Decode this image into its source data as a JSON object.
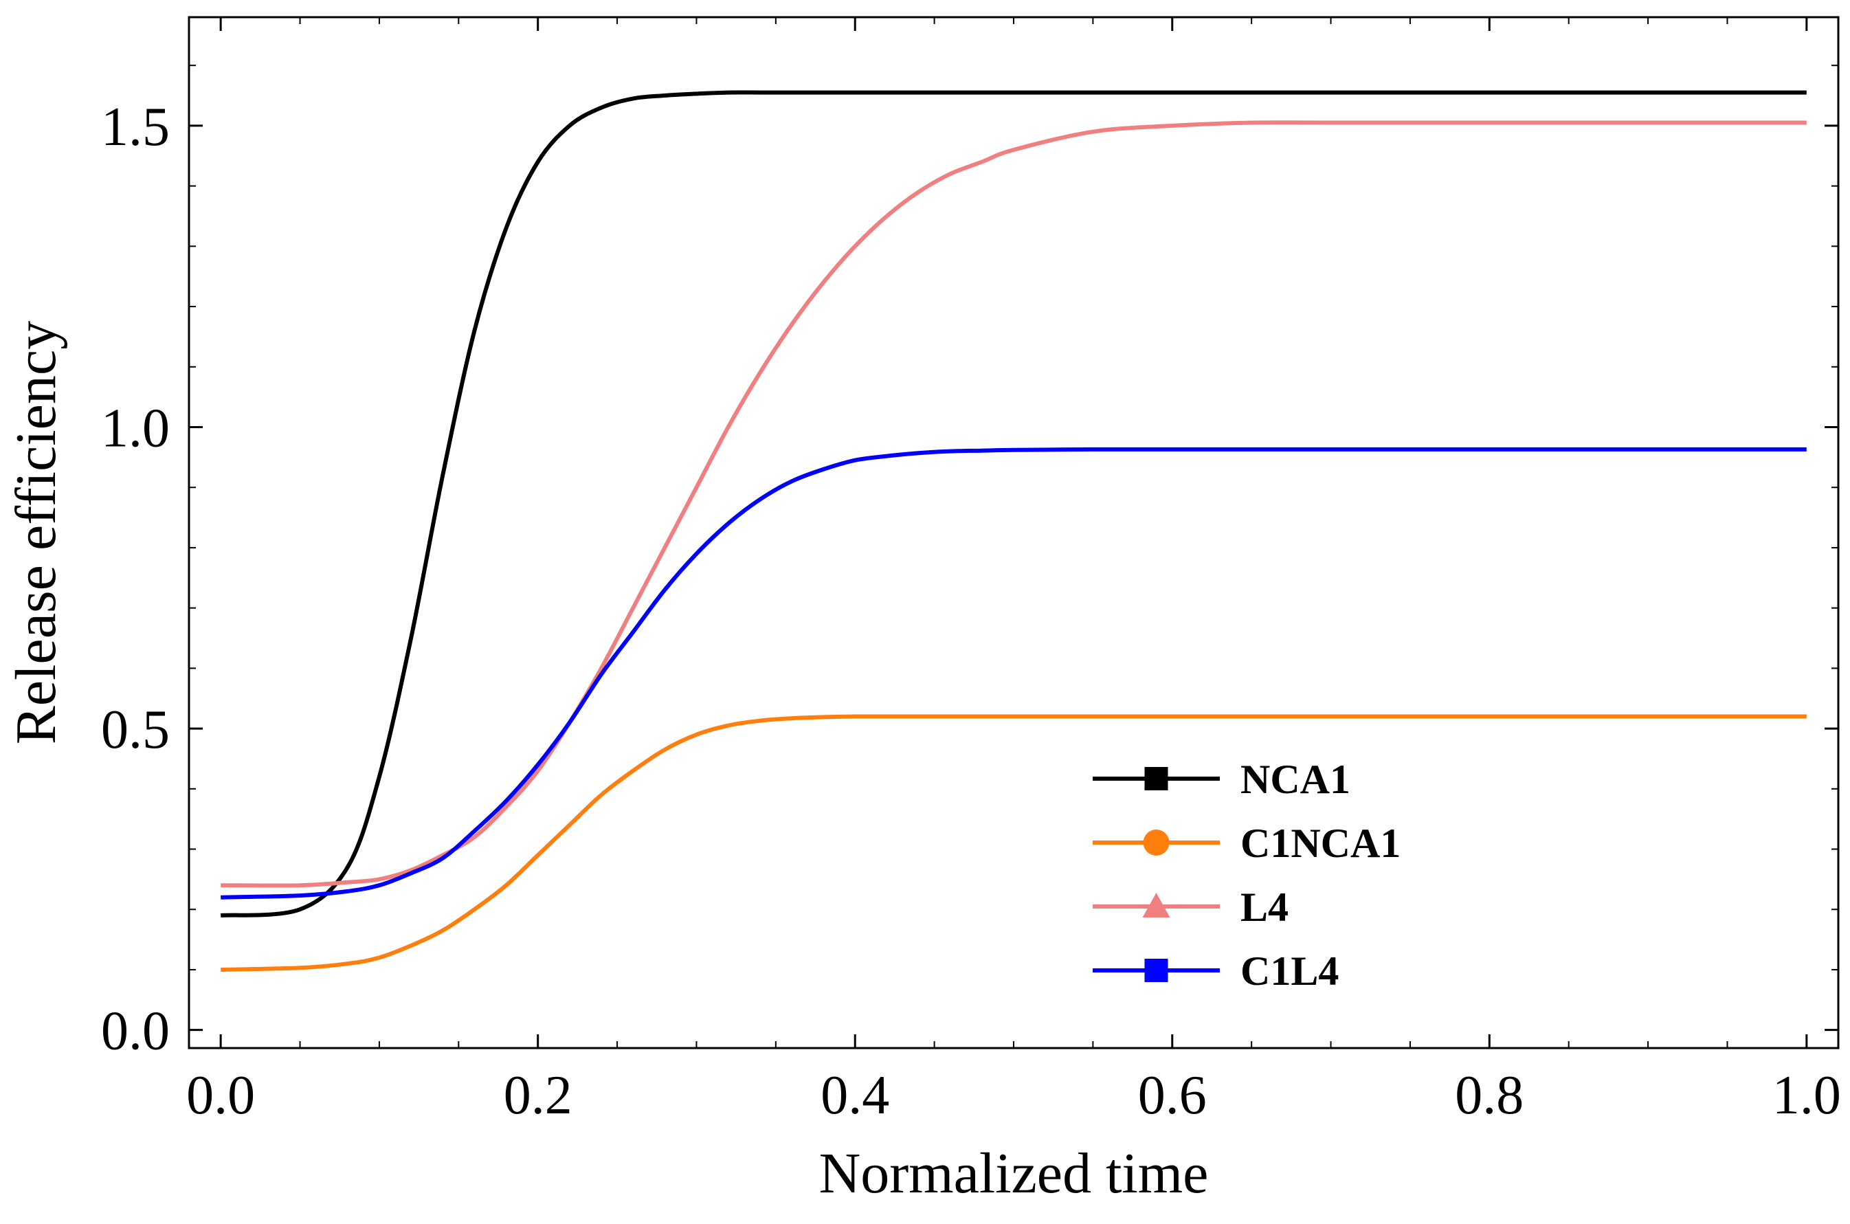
{
  "chart_data": {
    "type": "line",
    "xlabel": "Normalized time",
    "ylabel": "Release efficiency",
    "xlim": [
      -0.02,
      1.02
    ],
    "ylim": [
      -0.03,
      1.68
    ],
    "x_ticks": [
      0.0,
      0.2,
      0.4,
      0.6,
      0.8,
      1.0
    ],
    "x_tick_labels": [
      "0.0",
      "0.2",
      "0.4",
      "0.6",
      "0.8",
      "1.0"
    ],
    "y_ticks": [
      0.0,
      0.5,
      1.0,
      1.5
    ],
    "y_tick_labels": [
      "0.0",
      "0.5",
      "1.0",
      "1.5"
    ],
    "x_minor_step": 0.05,
    "y_minor_step": 0.1,
    "grid": false,
    "legend_position": "bottom-right",
    "x": [
      0.0,
      0.05,
      0.08,
      0.1,
      0.12,
      0.14,
      0.16,
      0.18,
      0.2,
      0.22,
      0.24,
      0.26,
      0.28,
      0.3,
      0.32,
      0.34,
      0.36,
      0.38,
      0.4,
      0.42,
      0.44,
      0.46,
      0.48,
      0.5,
      0.55,
      0.6,
      0.65,
      0.7,
      0.8,
      0.9,
      1.0
    ],
    "series": [
      {
        "name": "NCA1",
        "color": "#000000",
        "marker": "square",
        "values": [
          0.19,
          0.2,
          0.27,
          0.42,
          0.65,
          0.92,
          1.16,
          1.33,
          1.44,
          1.5,
          1.53,
          1.545,
          1.55,
          1.553,
          1.555,
          1.555,
          1.555,
          1.555,
          1.555,
          1.555,
          1.555,
          1.555,
          1.555,
          1.555,
          1.555,
          1.555,
          1.555,
          1.555,
          1.555,
          1.555,
          1.555
        ]
      },
      {
        "name": "C1NCA1",
        "color": "#ff7f0e",
        "marker": "circle",
        "values": [
          0.1,
          0.103,
          0.11,
          0.12,
          0.14,
          0.165,
          0.2,
          0.24,
          0.29,
          0.34,
          0.39,
          0.43,
          0.465,
          0.49,
          0.505,
          0.513,
          0.517,
          0.519,
          0.52,
          0.52,
          0.52,
          0.52,
          0.52,
          0.52,
          0.52,
          0.52,
          0.52,
          0.52,
          0.52,
          0.52,
          0.52
        ]
      },
      {
        "name": "L4",
        "color": "#f08080",
        "marker": "triangle",
        "values": [
          0.24,
          0.24,
          0.245,
          0.25,
          0.265,
          0.29,
          0.32,
          0.37,
          0.43,
          0.51,
          0.6,
          0.7,
          0.8,
          0.9,
          1.0,
          1.09,
          1.17,
          1.24,
          1.3,
          1.35,
          1.39,
          1.42,
          1.44,
          1.46,
          1.49,
          1.5,
          1.505,
          1.505,
          1.505,
          1.505,
          1.505
        ]
      },
      {
        "name": "C1L4",
        "color": "#0000ff",
        "marker": "square",
        "values": [
          0.22,
          0.223,
          0.23,
          0.24,
          0.26,
          0.285,
          0.33,
          0.38,
          0.44,
          0.51,
          0.59,
          0.66,
          0.73,
          0.79,
          0.84,
          0.88,
          0.91,
          0.93,
          0.945,
          0.952,
          0.957,
          0.96,
          0.961,
          0.962,
          0.963,
          0.963,
          0.963,
          0.963,
          0.963,
          0.963,
          0.963
        ]
      }
    ]
  }
}
